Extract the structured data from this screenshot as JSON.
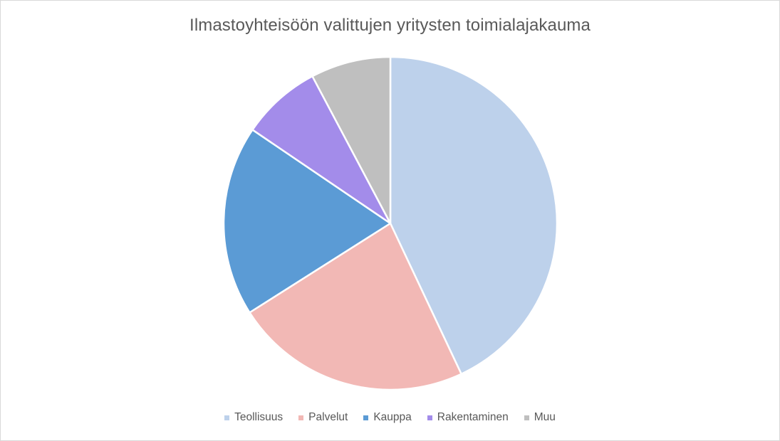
{
  "chart_data": {
    "type": "pie",
    "title": "Ilmastoyhteisöön valittujen yritysten toimialajakauma",
    "categories": [
      "Teollisuus",
      "Palvelut",
      "Kauppa",
      "Rakentaminen",
      "Muu"
    ],
    "values": [
      43,
      23,
      18.5,
      7.75,
      7.75
    ],
    "colors": [
      "#BDD1EB",
      "#F2B8B5",
      "#5B9BD5",
      "#A38CEA",
      "#BFBFBF"
    ],
    "start_angle_deg": 0,
    "direction": "clockwise",
    "legend_position": "bottom"
  }
}
